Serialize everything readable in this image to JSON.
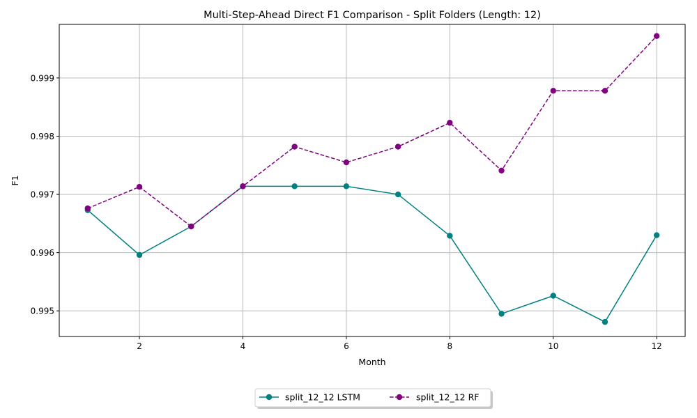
{
  "chart_data": {
    "type": "line",
    "title": "Multi-Step-Ahead Direct F1 Comparison - Split Folders (Length: 12)",
    "xlabel": "Month",
    "ylabel": "F1",
    "xlim": [
      0.45,
      12.55
    ],
    "ylim": [
      0.99456,
      0.99992
    ],
    "x_ticks": [
      2,
      4,
      6,
      8,
      10,
      12
    ],
    "y_ticks": [
      0.995,
      0.996,
      0.997,
      0.998,
      0.999
    ],
    "grid": true,
    "legend_position": "bottom-center",
    "x": [
      1,
      2,
      3,
      4,
      5,
      6,
      7,
      8,
      9,
      10,
      11,
      12
    ],
    "series": [
      {
        "name": "split_12_12 LSTM",
        "color": "#008080",
        "line_style": "solid",
        "marker": "circle",
        "values": [
          0.99673,
          0.99596,
          0.99645,
          0.99714,
          0.99714,
          0.99714,
          0.997,
          0.99629,
          0.99495,
          0.99526,
          0.99481,
          0.9963
        ]
      },
      {
        "name": "split_12_12 RF",
        "color": "#800080",
        "line_style": "dashed",
        "marker": "circle",
        "values": [
          0.99676,
          0.99713,
          0.99645,
          0.99714,
          0.99782,
          0.99755,
          0.99782,
          0.99823,
          0.99741,
          0.99878,
          0.99878,
          0.99972
        ]
      }
    ]
  }
}
